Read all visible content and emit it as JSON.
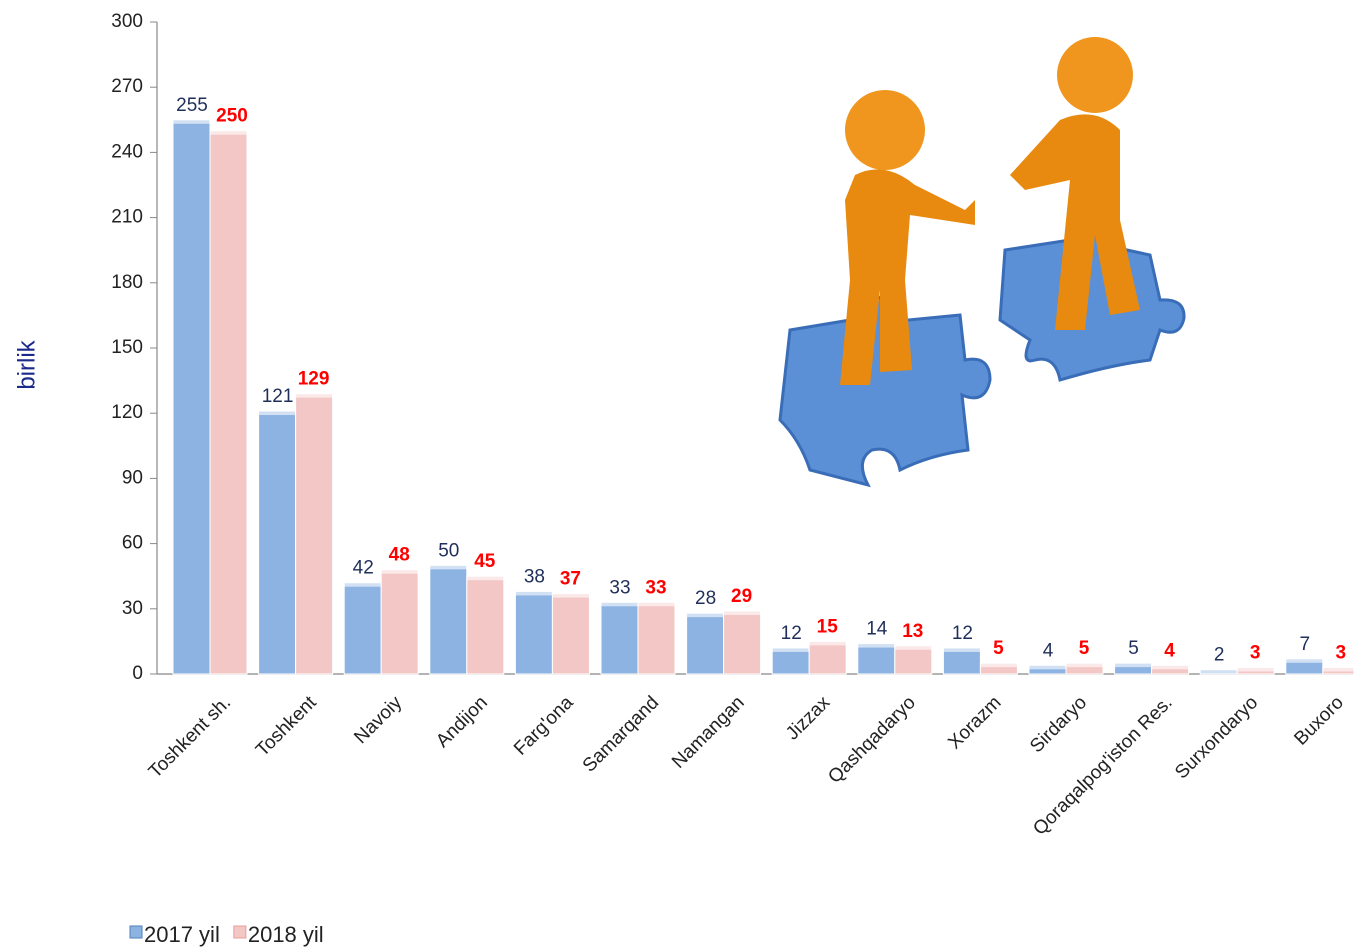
{
  "chart_data": {
    "type": "bar",
    "y_label": "birlik",
    "categories": [
      "Toshkent sh.",
      "Toshkent",
      "Navoiy",
      "Andijon",
      "Farg'ona",
      "Samarqand",
      "Namangan",
      "Jizzax",
      "Qashqadaryo",
      "Xorazm",
      "Sirdaryo",
      "Qoraqalpog'iston Res.",
      "Surxondaryo",
      "Buxoro"
    ],
    "series": [
      {
        "name": "2017 yil",
        "color": "#8db3e2",
        "label_color": "#1f2f5a",
        "values": [
          255,
          121,
          42,
          50,
          38,
          33,
          28,
          12,
          14,
          12,
          4,
          5,
          2,
          7
        ]
      },
      {
        "name": "2018 yil",
        "color": "#f4c7c7",
        "label_color": "#ff0000",
        "values": [
          250,
          129,
          48,
          45,
          37,
          33,
          29,
          15,
          13,
          5,
          5,
          4,
          3,
          3
        ]
      }
    ],
    "ylim": [
      0,
      300
    ],
    "yticks": [
      0,
      30,
      60,
      90,
      120,
      150,
      180,
      210,
      240,
      270,
      300
    ],
    "legend": "bottom-left"
  }
}
